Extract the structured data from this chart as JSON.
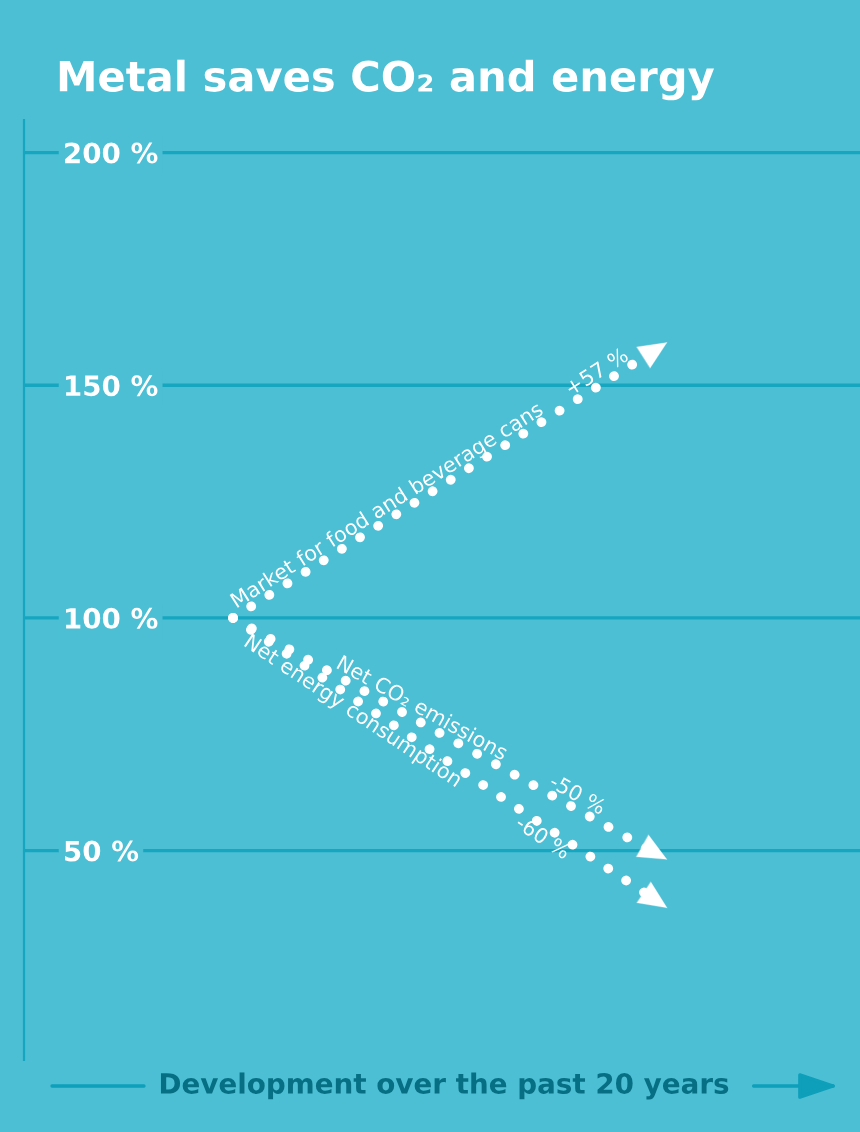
{
  "chart_data": {
    "type": "line",
    "title": "Metal saves CO₂ and energy",
    "xlabel": "Development over the past 20 years",
    "categories": [
      null,
      null
    ],
    "series": [
      {
        "name": "Market for food and beverage cans",
        "color": "#ffffff",
        "values": [
          100,
          157
        ]
      },
      {
        "name": "Net CO₂ emissions",
        "color": "#ffffff",
        "values": [
          100,
          50
        ]
      },
      {
        "name": "Net energy consumption",
        "color": "#ffffff",
        "values": [
          100,
          40
        ]
      }
    ],
    "annotations": [
      "+57 %",
      "-50 %",
      "-60 %"
    ],
    "ylim": [
      5,
      207
    ],
    "yticks": [
      {
        "value": 200,
        "label": "200 %"
      },
      {
        "value": 150,
        "label": "150 %"
      },
      {
        "value": 100,
        "label": "100 %"
      },
      {
        "value": 50,
        "label": "50 %"
      }
    ],
    "grid": "y",
    "line_style": "dotted",
    "legend": false
  }
}
